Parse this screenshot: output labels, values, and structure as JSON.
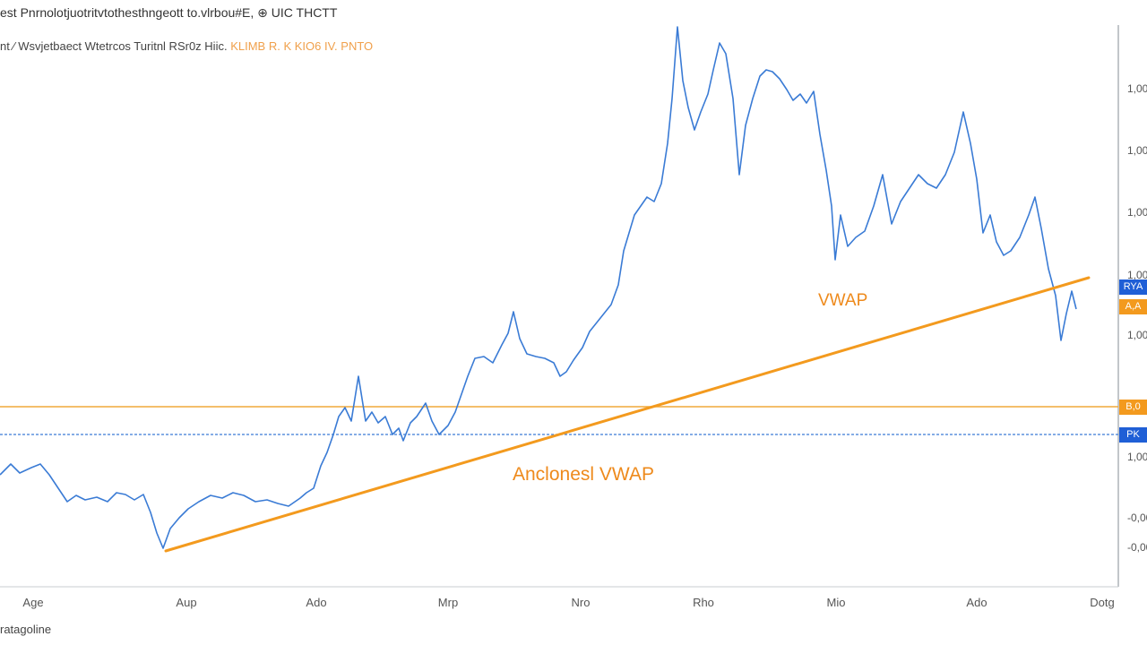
{
  "header": {
    "line1": "est Pnrnolotjuotritvtothesthngeott to.vlrbou#E,  ⊕  UIC  THCTT",
    "line2_a": "nt ⁄ Wsvjetbaect  Wtetrcos  Turitnl  RSr0z  Hiic.",
    "line2_b": "KLIMB  R.  K  KIO6  IV.  PNTO"
  },
  "footer": {
    "label": "ratagoline"
  },
  "colors": {
    "price": "#3a7bd5",
    "vwap": "#f39a1e",
    "hline_orange": "#f0a93a",
    "hline_blue": "#3a7bd5",
    "tag_blue": "#1f5fd6",
    "tag_orange": "#f39a1e"
  },
  "chart_data": {
    "type": "line",
    "x_labels": [
      "Age",
      "Aup",
      "Ado",
      "Mrp",
      "Nro",
      "Rho",
      "Mio",
      "Ado",
      "Dotg"
    ],
    "y_labels": [
      "1,00",
      "1,00",
      "1,00",
      "1,00",
      "1,00",
      "1,00",
      "-0,00",
      "-0,00"
    ],
    "annotations": [
      "VWAP",
      "Anclonesl VWAP"
    ],
    "price_tags": [
      {
        "label": "RYA",
        "color": "blue"
      },
      {
        "label": "A,A",
        "color": "orange"
      },
      {
        "label": "B,0",
        "color": "orange"
      },
      {
        "label": "PK",
        "color": "blue"
      }
    ],
    "series": [
      {
        "values": [
          [
            0,
            530
          ],
          [
            12,
            518
          ],
          [
            22,
            528
          ],
          [
            35,
            522
          ],
          [
            45,
            518
          ],
          [
            55,
            530
          ],
          [
            65,
            545
          ],
          [
            75,
            560
          ],
          [
            85,
            553
          ],
          [
            95,
            558
          ],
          [
            108,
            555
          ],
          [
            120,
            560
          ],
          [
            130,
            550
          ],
          [
            140,
            552
          ],
          [
            150,
            558
          ],
          [
            160,
            552
          ],
          [
            168,
            572
          ],
          [
            175,
            595
          ],
          [
            182,
            612
          ],
          [
            190,
            590
          ],
          [
            200,
            578
          ],
          [
            210,
            568
          ],
          [
            222,
            560
          ],
          [
            235,
            553
          ],
          [
            248,
            556
          ],
          [
            260,
            550
          ],
          [
            272,
            553
          ],
          [
            285,
            560
          ],
          [
            298,
            558
          ],
          [
            310,
            562
          ],
          [
            322,
            565
          ],
          [
            335,
            556
          ],
          [
            342,
            550
          ],
          [
            350,
            545
          ],
          [
            358,
            520
          ],
          [
            365,
            505
          ],
          [
            372,
            485
          ],
          [
            378,
            465
          ],
          [
            385,
            455
          ],
          [
            392,
            470
          ],
          [
            400,
            420
          ],
          [
            408,
            470
          ],
          [
            415,
            460
          ],
          [
            422,
            472
          ],
          [
            430,
            465
          ],
          [
            438,
            485
          ],
          [
            445,
            478
          ],
          [
            450,
            492
          ],
          [
            458,
            472
          ],
          [
            465,
            465
          ],
          [
            475,
            450
          ],
          [
            482,
            470
          ],
          [
            490,
            485
          ],
          [
            500,
            475
          ],
          [
            508,
            460
          ],
          [
            515,
            440
          ],
          [
            522,
            420
          ],
          [
            530,
            400
          ],
          [
            540,
            398
          ],
          [
            550,
            405
          ],
          [
            560,
            385
          ],
          [
            567,
            372
          ],
          [
            573,
            348
          ],
          [
            580,
            378
          ],
          [
            588,
            395
          ],
          [
            598,
            398
          ],
          [
            608,
            400
          ],
          [
            618,
            405
          ],
          [
            625,
            420
          ],
          [
            632,
            415
          ],
          [
            640,
            402
          ],
          [
            650,
            388
          ],
          [
            658,
            370
          ],
          [
            666,
            360
          ],
          [
            674,
            350
          ],
          [
            682,
            340
          ],
          [
            690,
            318
          ],
          [
            696,
            280
          ],
          [
            702,
            260
          ],
          [
            708,
            240
          ],
          [
            715,
            230
          ],
          [
            722,
            220
          ],
          [
            730,
            225
          ],
          [
            738,
            205
          ],
          [
            745,
            160
          ],
          [
            750,
            110
          ],
          [
            756,
            30
          ],
          [
            762,
            90
          ],
          [
            768,
            120
          ],
          [
            775,
            145
          ],
          [
            782,
            125
          ],
          [
            790,
            105
          ],
          [
            796,
            78
          ],
          [
            803,
            48
          ],
          [
            810,
            60
          ],
          [
            818,
            110
          ],
          [
            825,
            195
          ],
          [
            832,
            140
          ],
          [
            840,
            110
          ],
          [
            848,
            85
          ],
          [
            855,
            78
          ],
          [
            862,
            80
          ],
          [
            870,
            88
          ],
          [
            878,
            100
          ],
          [
            885,
            112
          ],
          [
            893,
            105
          ],
          [
            900,
            115
          ],
          [
            908,
            102
          ],
          [
            915,
            150
          ],
          [
            922,
            190
          ],
          [
            928,
            230
          ],
          [
            932,
            290
          ],
          [
            938,
            240
          ],
          [
            946,
            275
          ],
          [
            955,
            265
          ],
          [
            965,
            258
          ],
          [
            975,
            230
          ],
          [
            985,
            195
          ],
          [
            995,
            250
          ],
          [
            1005,
            225
          ],
          [
            1015,
            210
          ],
          [
            1025,
            195
          ],
          [
            1035,
            205
          ],
          [
            1045,
            210
          ],
          [
            1055,
            195
          ],
          [
            1065,
            170
          ],
          [
            1075,
            125
          ],
          [
            1083,
            160
          ],
          [
            1090,
            200
          ],
          [
            1097,
            260
          ],
          [
            1105,
            240
          ],
          [
            1112,
            270
          ],
          [
            1120,
            285
          ],
          [
            1128,
            280
          ],
          [
            1138,
            265
          ],
          [
            1148,
            240
          ],
          [
            1155,
            220
          ],
          [
            1162,
            255
          ],
          [
            1170,
            300
          ],
          [
            1178,
            330
          ],
          [
            1184,
            380
          ],
          [
            1190,
            350
          ],
          [
            1196,
            325
          ],
          [
            1201,
            345
          ]
        ]
      }
    ],
    "vwap_line": [
      [
        185,
        615
      ],
      [
        1215,
        310
      ]
    ]
  }
}
